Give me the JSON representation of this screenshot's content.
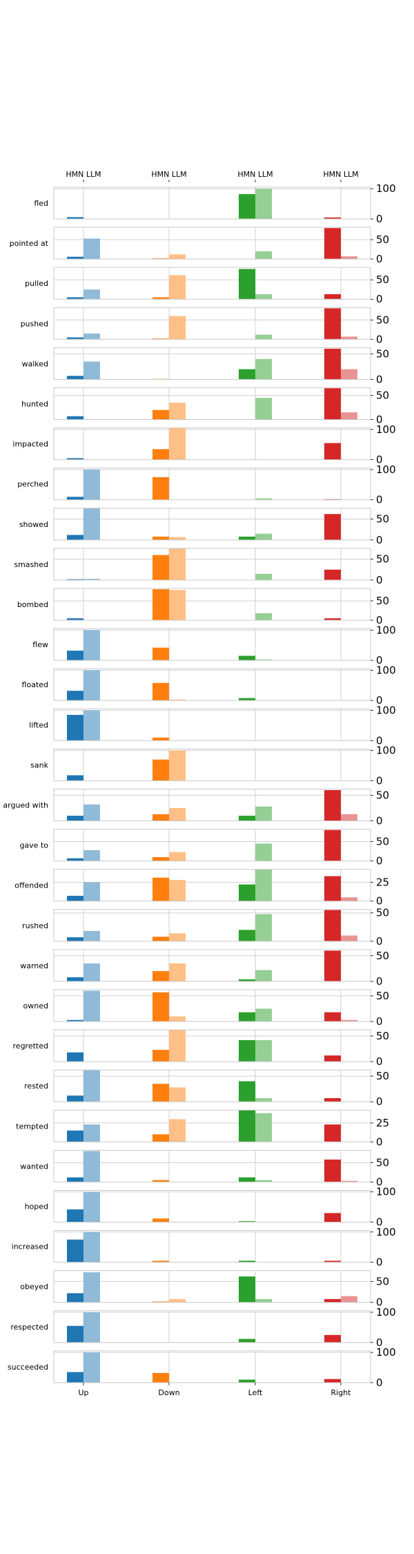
{
  "chart_data": {
    "type": "bar",
    "directions": [
      "Up",
      "Down",
      "Left",
      "Right"
    ],
    "series_labels": [
      "HMN",
      "LLM"
    ],
    "colors": {
      "Up": "#1f77b4",
      "Down": "#ff7f0e",
      "Left": "#2ca02c",
      "Right": "#d62728"
    },
    "light_colors": {
      "Up": "#8fbbd9",
      "Down": "#ffbf86",
      "Left": "#95cf95",
      "Right": "#ea9393"
    },
    "panels": [
      {
        "verb": "fled",
        "ticks": [
          0,
          100
        ],
        "ymax": 105,
        "HMN": [
          6,
          1,
          82,
          5
        ],
        "LLM": [
          0,
          0,
          100,
          0
        ]
      },
      {
        "verb": "pointed at",
        "ticks": [
          0,
          50
        ],
        "ymax": 82,
        "HMN": [
          6,
          2,
          0,
          80
        ],
        "LLM": [
          53,
          12,
          20,
          7
        ]
      },
      {
        "verb": "pulled",
        "ticks": [
          0,
          50
        ],
        "ymax": 82,
        "HMN": [
          5,
          5,
          78,
          13
        ],
        "LLM": [
          25,
          62,
          13,
          0
        ]
      },
      {
        "verb": "pushed",
        "ticks": [
          0,
          50
        ],
        "ymax": 82,
        "HMN": [
          5,
          2,
          0,
          80
        ],
        "LLM": [
          15,
          60,
          12,
          7
        ]
      },
      {
        "verb": "walked",
        "ticks": [
          0,
          50
        ],
        "ymax": 62,
        "HMN": [
          7,
          1,
          20,
          60
        ],
        "LLM": [
          35,
          0,
          40,
          20
        ]
      },
      {
        "verb": "hunted",
        "ticks": [
          0,
          50
        ],
        "ymax": 66,
        "HMN": [
          7,
          20,
          0,
          65
        ],
        "LLM": [
          0,
          35,
          45,
          15
        ]
      },
      {
        "verb": "impacted",
        "ticks": [
          0,
          100
        ],
        "ymax": 105,
        "HMN": [
          5,
          35,
          0,
          55
        ],
        "LLM": [
          0,
          105,
          0,
          0
        ]
      },
      {
        "verb": "perched",
        "ticks": [
          0,
          100
        ],
        "ymax": 105,
        "HMN": [
          10,
          75,
          0,
          2
        ],
        "LLM": [
          100,
          0,
          5,
          0
        ]
      },
      {
        "verb": "showed",
        "ticks": [
          0,
          50
        ],
        "ymax": 76,
        "HMN": [
          12,
          8,
          8,
          62
        ],
        "LLM": [
          76,
          7,
          15,
          0
        ]
      },
      {
        "verb": "smashed",
        "ticks": [
          0,
          50
        ],
        "ymax": 76,
        "HMN": [
          2,
          60,
          0,
          25
        ],
        "LLM": [
          3,
          76,
          15,
          0
        ]
      },
      {
        "verb": "bombed",
        "ticks": [
          0,
          50
        ],
        "ymax": 82,
        "HMN": [
          5,
          80,
          0,
          5
        ],
        "LLM": [
          0,
          78,
          18,
          0
        ]
      },
      {
        "verb": "flew",
        "ticks": [
          0,
          100
        ],
        "ymax": 105,
        "HMN": [
          32,
          42,
          15,
          0
        ],
        "LLM": [
          100,
          0,
          3,
          0
        ]
      },
      {
        "verb": "floated",
        "ticks": [
          0,
          100
        ],
        "ymax": 105,
        "HMN": [
          32,
          58,
          8,
          0
        ],
        "LLM": [
          100,
          3,
          0,
          0
        ]
      },
      {
        "verb": "lifted",
        "ticks": [
          0,
          100
        ],
        "ymax": 105,
        "HMN": [
          85,
          10,
          0,
          0
        ],
        "LLM": [
          100,
          0,
          0,
          0
        ]
      },
      {
        "verb": "sank",
        "ticks": [
          0,
          100
        ],
        "ymax": 105,
        "HMN": [
          18,
          70,
          0,
          0
        ],
        "LLM": [
          0,
          100,
          0,
          0
        ]
      },
      {
        "verb": "argued with",
        "ticks": [
          0,
          50
        ],
        "ymax": 62,
        "HMN": [
          10,
          13,
          10,
          60
        ],
        "LLM": [
          32,
          25,
          28,
          13
        ]
      },
      {
        "verb": "gave to",
        "ticks": [
          0,
          50
        ],
        "ymax": 82,
        "HMN": [
          7,
          10,
          0,
          80
        ],
        "LLM": [
          28,
          23,
          45,
          0
        ]
      },
      {
        "verb": "offended",
        "ticks": [
          0,
          25
        ],
        "ymax": 42,
        "HMN": [
          7,
          31,
          22,
          33
        ],
        "LLM": [
          25,
          28,
          42,
          5
        ]
      },
      {
        "verb": "rushed",
        "ticks": [
          0,
          50
        ],
        "ymax": 56,
        "HMN": [
          7,
          8,
          20,
          55
        ],
        "LLM": [
          18,
          14,
          48,
          10
        ]
      },
      {
        "verb": "warned",
        "ticks": [
          0,
          50
        ],
        "ymax": 62,
        "HMN": [
          8,
          20,
          4,
          60
        ],
        "LLM": [
          35,
          35,
          22,
          0
        ]
      },
      {
        "verb": "owned",
        "ticks": [
          0,
          50
        ],
        "ymax": 62,
        "HMN": [
          3,
          57,
          18,
          18
        ],
        "LLM": [
          60,
          10,
          25,
          3
        ]
      },
      {
        "verb": "regretted",
        "ticks": [
          0,
          50
        ],
        "ymax": 62,
        "HMN": [
          18,
          23,
          42,
          12
        ],
        "LLM": [
          0,
          62,
          42,
          0
        ]
      },
      {
        "verb": "rested",
        "ticks": [
          0,
          50
        ],
        "ymax": 62,
        "HMN": [
          12,
          35,
          40,
          7
        ],
        "LLM": [
          62,
          28,
          7,
          0
        ]
      },
      {
        "verb": "tempted",
        "ticks": [
          0,
          25
        ],
        "ymax": 42,
        "HMN": [
          15,
          10,
          42,
          23
        ],
        "LLM": [
          23,
          30,
          38,
          0
        ]
      },
      {
        "verb": "wanted",
        "ticks": [
          0,
          50
        ],
        "ymax": 82,
        "HMN": [
          12,
          5,
          12,
          58
        ],
        "LLM": [
          80,
          0,
          5,
          3
        ]
      },
      {
        "verb": "hoped",
        "ticks": [
          0,
          100
        ],
        "ymax": 105,
        "HMN": [
          42,
          12,
          3,
          30
        ],
        "LLM": [
          100,
          0,
          0,
          0
        ]
      },
      {
        "verb": "increased",
        "ticks": [
          0,
          100
        ],
        "ymax": 105,
        "HMN": [
          75,
          5,
          5,
          5
        ],
        "LLM": [
          100,
          0,
          0,
          0
        ]
      },
      {
        "verb": "obeyed",
        "ticks": [
          0,
          50
        ],
        "ymax": 76,
        "HMN": [
          22,
          2,
          62,
          8
        ],
        "LLM": [
          72,
          8,
          8,
          15
        ]
      },
      {
        "verb": "respected",
        "ticks": [
          0,
          100
        ],
        "ymax": 105,
        "HMN": [
          55,
          0,
          12,
          25
        ],
        "LLM": [
          100,
          0,
          0,
          0
        ]
      },
      {
        "verb": "succeeded",
        "ticks": [
          0,
          100
        ],
        "ymax": 105,
        "HMN": [
          35,
          32,
          10,
          12
        ],
        "LLM": [
          100,
          0,
          0,
          0
        ]
      }
    ]
  }
}
